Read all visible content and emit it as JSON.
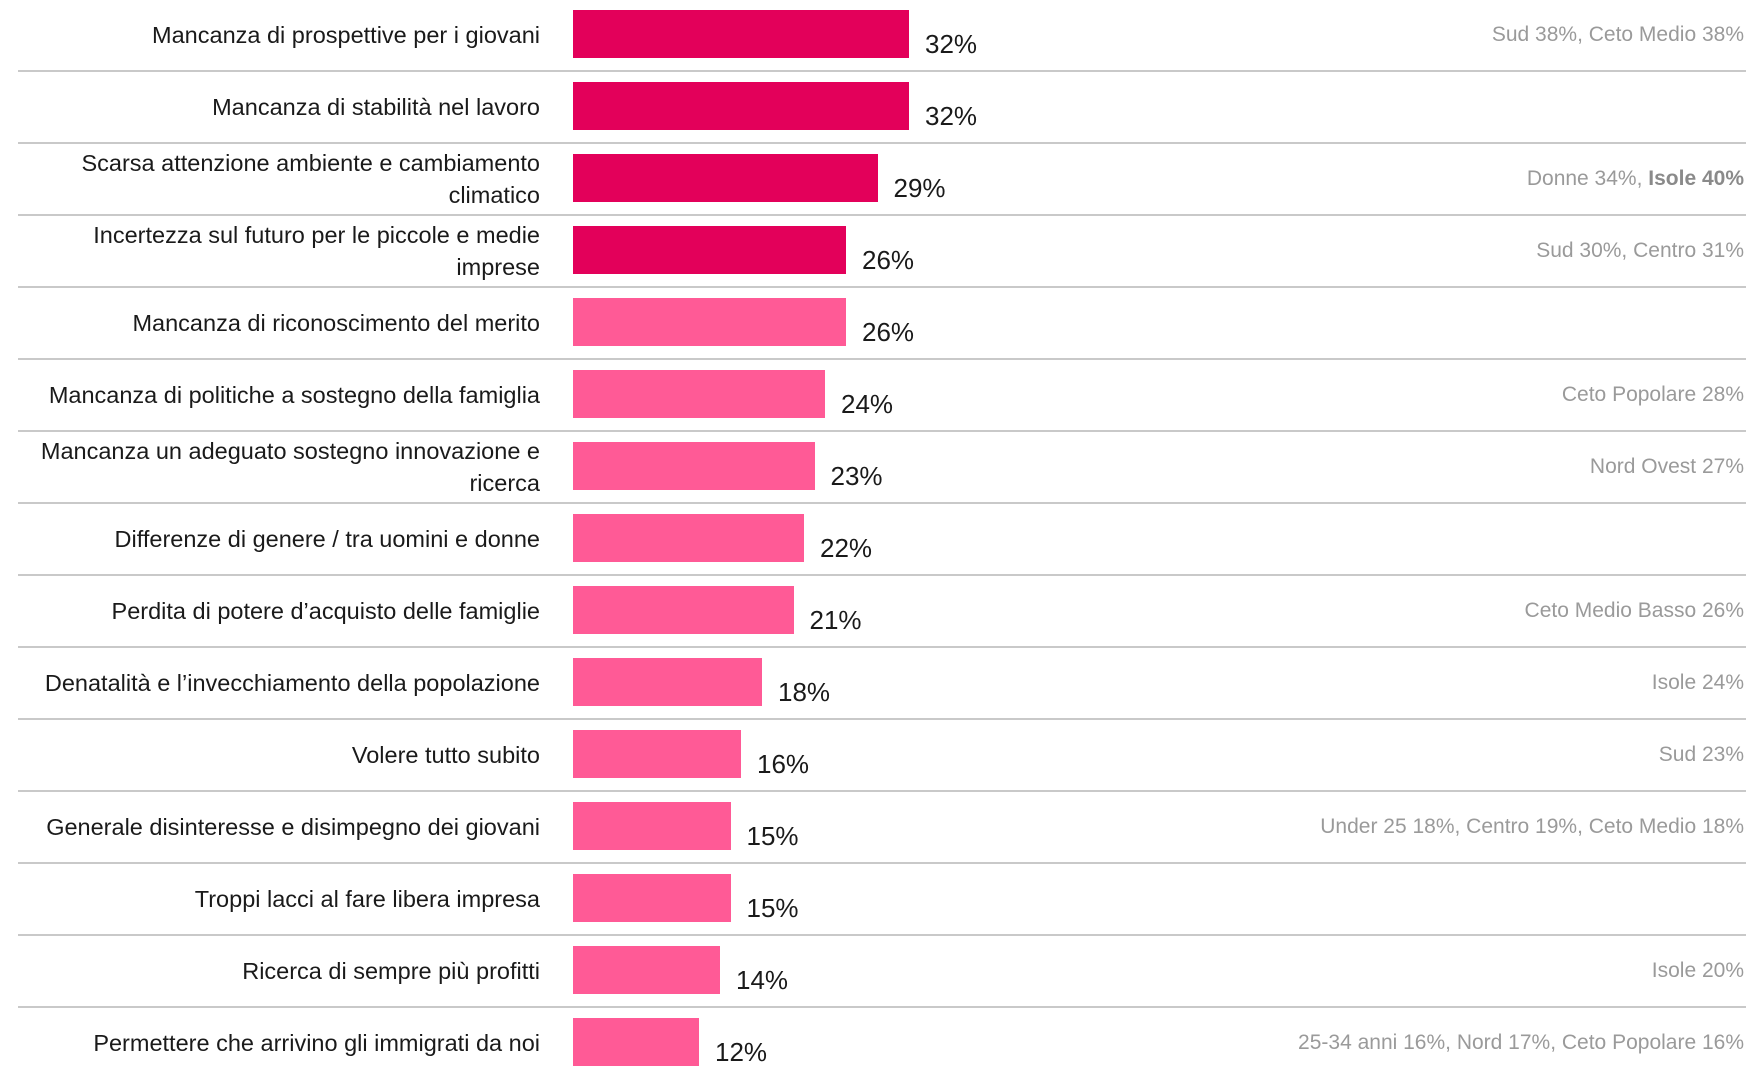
{
  "chart_data": {
    "type": "bar",
    "orientation": "horizontal",
    "colors": {
      "highlight": "#E3005A",
      "normal": "#FF5A96"
    },
    "xlim": [
      0,
      40
    ],
    "categories": [
      "Mancanza di prospettive per i giovani",
      "Mancanza di stabilità nel lavoro",
      "Scarsa attenzione ambiente e cambiamento climatico",
      "Incertezza sul futuro per le piccole e medie imprese",
      "Mancanza di riconoscimento del merito",
      "Mancanza di politiche a sostegno della famiglia",
      "Mancanza un adeguato sostegno innovazione e ricerca",
      "Differenze di genere / tra uomini e donne",
      "Perdita di potere d’acquisto delle famiglie",
      "Denatalità e l’invecchiamento della popolazione",
      "Volere tutto subito",
      "Generale disinteresse e disimpegno dei giovani",
      "Troppi lacci al fare libera impresa",
      "Ricerca di sempre più profitti",
      "Permettere che arrivino gli immigrati da noi"
    ],
    "values": [
      32,
      32,
      29,
      26,
      26,
      24,
      23,
      22,
      21,
      18,
      16,
      15,
      15,
      14,
      12
    ],
    "value_labels": [
      "32%",
      "32%",
      "29%",
      "26%",
      "26%",
      "24%",
      "23%",
      "22%",
      "21%",
      "18%",
      "16%",
      "15%",
      "15%",
      "14%",
      "12%"
    ],
    "highlighted": [
      true,
      true,
      true,
      true,
      false,
      false,
      false,
      false,
      false,
      false,
      false,
      false,
      false,
      false,
      false
    ],
    "notes": [
      [
        {
          "text": "Sud 38%, Ceto Medio 38%",
          "bold": false
        }
      ],
      [],
      [
        {
          "text": "Donne 34%, ",
          "bold": false
        },
        {
          "text": "Isole 40%",
          "bold": true
        }
      ],
      [
        {
          "text": "Sud 30%, Centro 31%",
          "bold": false
        }
      ],
      [],
      [
        {
          "text": "Ceto Popolare 28%",
          "bold": false
        }
      ],
      [
        {
          "text": "Nord Ovest 27%",
          "bold": false
        }
      ],
      [],
      [
        {
          "text": "Ceto Medio Basso 26%",
          "bold": false
        }
      ],
      [
        {
          "text": "Isole 24%",
          "bold": false
        }
      ],
      [
        {
          "text": "Sud 23%",
          "bold": false
        }
      ],
      [
        {
          "text": "Under 25 18%, Centro 19%, Ceto Medio 18%",
          "bold": false
        }
      ],
      [],
      [
        {
          "text": "Isole 20%",
          "bold": false
        }
      ],
      [
        {
          "text": "25-34 anni 16%, Nord 17%, Ceto Popolare 16%",
          "bold": false
        }
      ]
    ]
  }
}
